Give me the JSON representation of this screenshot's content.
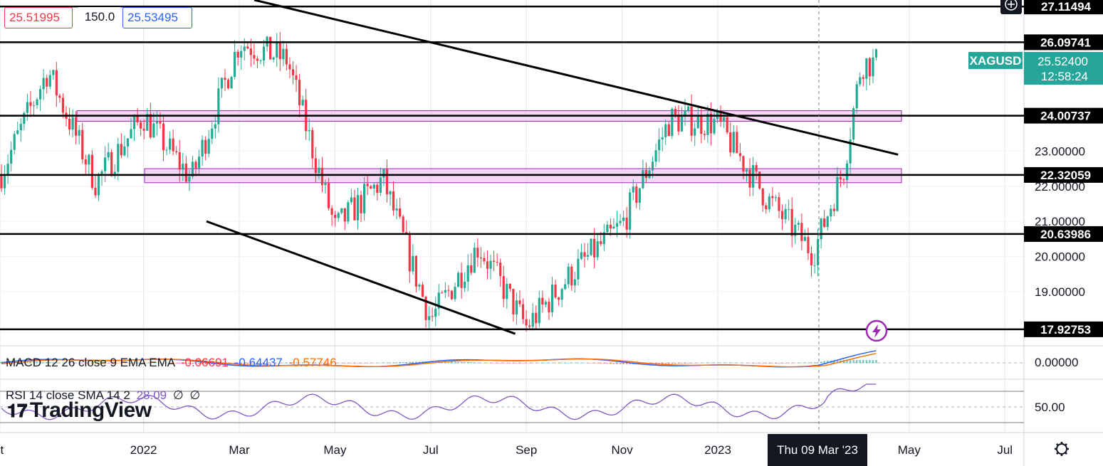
{
  "header": {
    "bid": "25.51995",
    "spread": "150.0",
    "ask": "25.53495"
  },
  "symbol": {
    "ticker": "XAGUSD",
    "last_price": "25.52400",
    "countdown": "12:58:24"
  },
  "levels": [
    {
      "value": 27.11494,
      "label": "27.11494"
    },
    {
      "value": 26.09741,
      "label": "26.09741"
    },
    {
      "value": 24.00737,
      "label": "24.00737"
    },
    {
      "value": 22.32059,
      "label": "22.32059"
    },
    {
      "value": 20.63986,
      "label": "20.63986"
    },
    {
      "value": 17.92753,
      "label": "17.92753"
    }
  ],
  "zones": [
    {
      "from": 23.85,
      "to": 24.15
    },
    {
      "from": 22.1,
      "to": 22.5
    }
  ],
  "macd": {
    "label": "MACD 12 26 close 9 EMA EMA",
    "hist": "-0.06691",
    "macd": "-0.64437",
    "signal": "-0.57746",
    "axis_label": "0.00000"
  },
  "rsi": {
    "label": "RSI 14 close SMA 14 2",
    "value": "28.09",
    "extra1": "∅",
    "extra2": "∅",
    "axis_label": "50.00"
  },
  "crosshair": {
    "date_label": "Thu 09 Mar '23"
  },
  "brand": "TradingView",
  "icons": {
    "add": "plus-circle-icon",
    "lightning": "lightning-icon",
    "settings": "gear-icon"
  },
  "colors": {
    "up": "#22ab94",
    "down": "#f23645",
    "zone_fill": "#f0c6f0",
    "zone_border": "#9c27b0",
    "macd_line": "#2962ff",
    "signal_line": "#ff6d00",
    "rsi_line": "#7e57c2",
    "symbol_bg": "#26a69a"
  },
  "chart_data": {
    "type": "candlestick",
    "symbol": "XAGUSD",
    "y_range": [
      17.5,
      27.3
    ],
    "price_ticks": [
      "23.00000",
      "22.00000",
      "21.00000",
      "20.00000",
      "19.00000"
    ],
    "price_tick_values": [
      23,
      22,
      21,
      20,
      19
    ],
    "x_ticks": [
      "ct",
      "2022",
      "Mar",
      "May",
      "Jul",
      "Sep",
      "Nov",
      "2023",
      "May",
      "Jul"
    ],
    "trendlines": [
      {
        "from": [
          "2021-11",
          27.3
        ],
        "to": [
          "2023-07",
          22.9
        ]
      },
      {
        "from": [
          "2021-10",
          21.0
        ],
        "to": [
          "2022-11",
          17.8
        ]
      }
    ],
    "close_series_anchors": [
      {
        "date": "2021-10",
        "close": 22.3
      },
      {
        "date": "2021-11",
        "close": 25.3
      },
      {
        "date": "2021-12",
        "close": 22.1
      },
      {
        "date": "2022-01",
        "close": 24.0
      },
      {
        "date": "2022-02",
        "close": 22.2
      },
      {
        "date": "2022-03",
        "close": 26.1
      },
      {
        "date": "2022-04",
        "close": 25.6
      },
      {
        "date": "2022-05",
        "close": 20.8
      },
      {
        "date": "2022-06",
        "close": 22.2
      },
      {
        "date": "2022-07",
        "close": 18.2
      },
      {
        "date": "2022-08",
        "close": 20.3
      },
      {
        "date": "2022-09",
        "close": 18.0
      },
      {
        "date": "2022-10",
        "close": 19.6
      },
      {
        "date": "2022-11",
        "close": 20.9
      },
      {
        "date": "2022-12",
        "close": 23.9
      },
      {
        "date": "2023-01",
        "close": 23.8
      },
      {
        "date": "2023-02",
        "close": 21.7
      },
      {
        "date": "2023-03",
        "close": 20.1
      },
      {
        "date": "2023-03-20",
        "close": 22.5
      },
      {
        "date": "2023-04",
        "close": 25.5
      }
    ]
  }
}
